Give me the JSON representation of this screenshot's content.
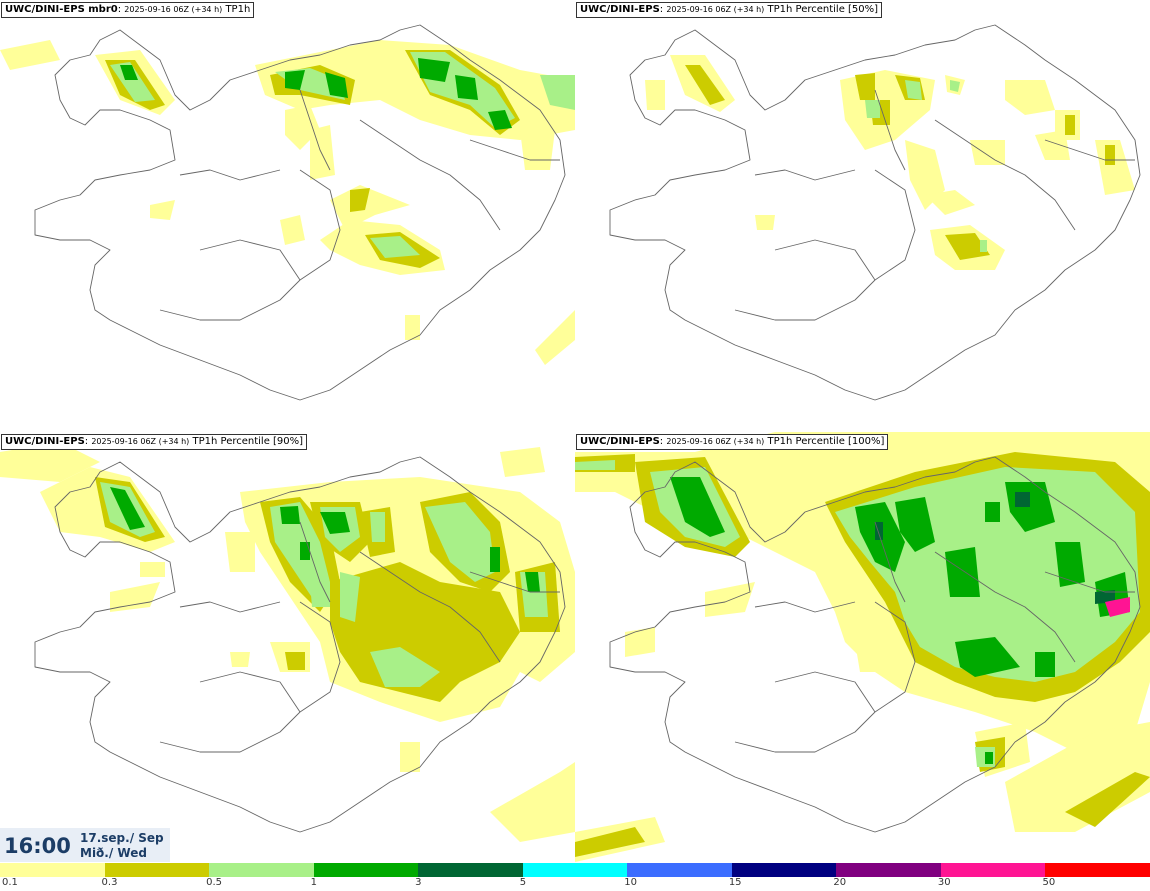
{
  "panels": [
    {
      "model": "UWC/DINI-EPS mbr0",
      "suffix": ":",
      "run": "2025-09-16 06Z (+34 h)",
      "field": "TP1h"
    },
    {
      "model": "UWC/DINI-EPS",
      "suffix": ":",
      "run": "2025-09-16 06Z (+34 h)",
      "field": "TP1h Percentile [50%]"
    },
    {
      "model": "UWC/DINI-EPS",
      "suffix": ":",
      "run": "2025-09-16 06Z (+34 h)",
      "field": "TP1h Percentile [90%]"
    },
    {
      "model": "UWC/DINI-EPS",
      "suffix": ":",
      "run": "2025-09-16 06Z (+34 h)",
      "field": "TP1h Percentile [100%]"
    }
  ],
  "valid": {
    "time": "16:00",
    "date": "17.sep./ Sep",
    "weekday": "Mið./ Wed"
  },
  "legend": {
    "colors": [
      "#ffff99",
      "#cccc00",
      "#a8f088",
      "#00aa00",
      "#006633",
      "#00ffff",
      "#3b6dff",
      "#000080",
      "#800080",
      "#ff1493",
      "#ff0000"
    ],
    "ticks": [
      "0.1",
      "0.3",
      "0.5",
      "1",
      "3",
      "5",
      "10",
      "15",
      "20",
      "30",
      "50"
    ]
  }
}
